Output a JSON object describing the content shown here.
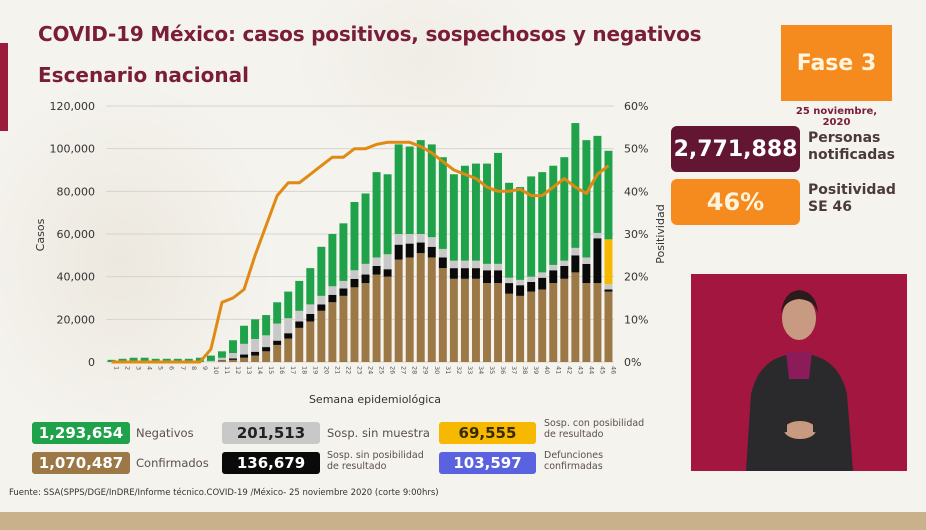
{
  "header": {
    "title": "COVID-19 México: casos positivos, sospechosos y negativos",
    "subtitle": "Escenario nacional"
  },
  "phase": {
    "label": "Fase 3",
    "date": "25 noviembre, 2020"
  },
  "stats": {
    "notified": {
      "value": "2,771,888",
      "label_line1": "Personas",
      "label_line2": "notificadas"
    },
    "positivity": {
      "value": "46%",
      "label_line1": "Positividad",
      "label_line2": "SE 46"
    }
  },
  "legend": [
    {
      "key": "negativos",
      "value": "1,293,654",
      "label": "Negativos",
      "color": "#1fa24a",
      "text_color": "#ffffff"
    },
    {
      "key": "sin_muestra",
      "value": "201,513",
      "label": "Sosp. sin muestra",
      "color": "#c8c8c8",
      "text_color": "#222222"
    },
    {
      "key": "con_posibilidad",
      "value": "69,555",
      "label": "Sosp. con posibilidad de resultado",
      "color": "#f6b800",
      "text_color": "#3a2a00"
    },
    {
      "key": "confirmados",
      "value": "1,070,487",
      "label": "Confirmados",
      "color": "#9c7847",
      "text_color": "#ffffff"
    },
    {
      "key": "sin_posibilidad",
      "value": "136,679",
      "label": "Sosp. sin posibilidad de resultado",
      "color": "#0a0a0a",
      "text_color": "#ffffff"
    },
    {
      "key": "defunciones",
      "value": "103,597",
      "label": "Defunciones confirmadas",
      "color": "#5b62e0",
      "text_color": "#ffffff"
    }
  ],
  "source": "Fuente: SSA(SPPS/DGE/InDRE/Informe técnico.COVID-19 /México- 25 noviembre 2020 (corte 9:00hrs)",
  "chart_data": {
    "type": "bar",
    "stacked": true,
    "xlabel": "Semana epidemiológica",
    "ylabel": "Casos",
    "y2label": "Positividad",
    "ylim": [
      0,
      120000
    ],
    "y2lim": [
      0,
      60
    ],
    "yticks": [
      "0",
      "20,000",
      "40,000",
      "60,000",
      "80,000",
      "100,000",
      "120,000"
    ],
    "y2ticks": [
      "0%",
      "10%",
      "20%",
      "30%",
      "40%",
      "50%",
      "60%"
    ],
    "grid": true,
    "categories": [
      "1",
      "2",
      "3",
      "4",
      "5",
      "6",
      "7",
      "8",
      "9",
      "10",
      "11",
      "12",
      "13",
      "14",
      "15",
      "16",
      "17",
      "18",
      "19",
      "20",
      "21",
      "22",
      "23",
      "24",
      "25",
      "26",
      "27",
      "28",
      "29",
      "30",
      "31",
      "32",
      "33",
      "34",
      "35",
      "36",
      "37",
      "38",
      "39",
      "40",
      "41",
      "42",
      "43",
      "44",
      "45",
      "46"
    ],
    "series": [
      {
        "name": "Confirmados",
        "color": "#9c7847",
        "values": [
          0,
          0,
          0,
          0,
          0,
          0,
          0,
          0,
          0,
          0,
          500,
          1000,
          2000,
          3000,
          5000,
          8000,
          11000,
          16000,
          19000,
          24000,
          28000,
          31000,
          35000,
          37000,
          41000,
          40000,
          48000,
          49000,
          51000,
          49000,
          44000,
          39000,
          39000,
          39000,
          37000,
          37000,
          32000,
          31000,
          33000,
          34000,
          37000,
          39000,
          42000,
          37000,
          37000,
          33000
        ]
      },
      {
        "name": "Sosp. sin posibilidad de resultado",
        "color": "#0a0a0a",
        "values": [
          0,
          0,
          0,
          0,
          0,
          0,
          0,
          0,
          0,
          0,
          300,
          700,
          1500,
          1800,
          2000,
          2000,
          2500,
          3000,
          3500,
          3000,
          3500,
          3500,
          4000,
          4000,
          4000,
          3500,
          7000,
          6500,
          5000,
          5000,
          5000,
          5000,
          5000,
          5000,
          6000,
          6000,
          5000,
          5000,
          4500,
          5500,
          6000,
          6000,
          8000,
          9000,
          21000,
          1000
        ]
      },
      {
        "name": "Sosp. sin muestra",
        "color": "#c8c8c8",
        "values": [
          0,
          0,
          0,
          0,
          0,
          0,
          0,
          0,
          0,
          500,
          1200,
          2500,
          5000,
          6000,
          5500,
          8000,
          7000,
          5000,
          4500,
          4000,
          4000,
          3500,
          4000,
          5000,
          4000,
          7000,
          5000,
          4500,
          4000,
          4500,
          4000,
          3500,
          3500,
          3500,
          3000,
          3000,
          2500,
          2500,
          2500,
          2500,
          2500,
          2500,
          3500,
          3000,
          2500,
          2500
        ]
      },
      {
        "name": "Sosp. con posibilidad de resultado",
        "color": "#f6b800",
        "values": [
          0,
          0,
          0,
          0,
          0,
          0,
          0,
          0,
          0,
          0,
          0,
          0,
          0,
          0,
          0,
          0,
          0,
          0,
          0,
          0,
          0,
          0,
          0,
          0,
          0,
          0,
          0,
          0,
          0,
          0,
          0,
          0,
          0,
          0,
          0,
          0,
          0,
          0,
          0,
          0,
          0,
          0,
          0,
          0,
          0,
          21000
        ]
      },
      {
        "name": "Negativos",
        "color": "#1fa24a",
        "values": [
          1000,
          1500,
          2000,
          2000,
          1500,
          1500,
          1500,
          1500,
          2000,
          2500,
          3000,
          6000,
          8500,
          9200,
          9500,
          10000,
          12500,
          14000,
          17000,
          23000,
          24500,
          27000,
          32000,
          33000,
          40000,
          37500,
          42000,
          41000,
          44000,
          43500,
          43000,
          40500,
          44500,
          45500,
          47000,
          52000,
          44500,
          43500,
          47000,
          47000,
          46500,
          48500,
          58500,
          55000,
          45500,
          41500
        ]
      }
    ],
    "line": {
      "name": "Positividad",
      "color": "#e08a13",
      "axis": "y2",
      "values": [
        0,
        0,
        0,
        0,
        0,
        0,
        0,
        0,
        0,
        3,
        14,
        15,
        17,
        25,
        32,
        39,
        42,
        42,
        44,
        46,
        48,
        48,
        50,
        50,
        51,
        51.5,
        51.5,
        51.5,
        50.5,
        49,
        47,
        45,
        44,
        43,
        41,
        40,
        40,
        40.5,
        39,
        39,
        41,
        43,
        41,
        39.5,
        44,
        46
      ]
    }
  }
}
